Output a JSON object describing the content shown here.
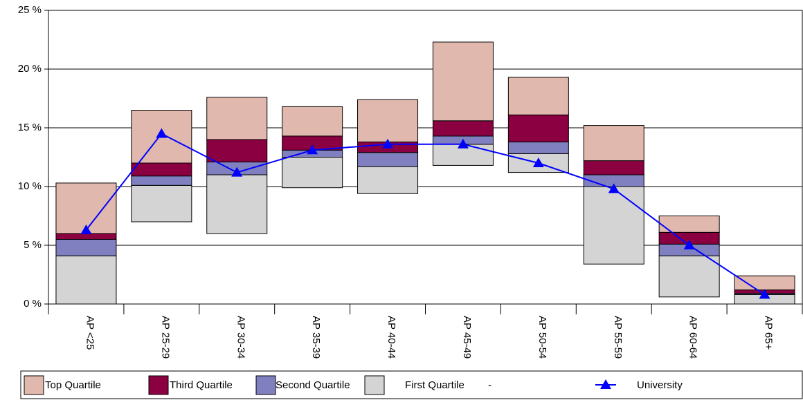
{
  "chart_data": {
    "type": "bar",
    "stacked": true,
    "categories": [
      "AP <25",
      "AP 25-29",
      "AP 30-34",
      "AP 35-39",
      "AP 40-44",
      "AP 45-49",
      "AP 50-54",
      "AP 55-59",
      "AP 60-64",
      "AP 65+"
    ],
    "series": [
      {
        "name": "-",
        "color": null,
        "values": [
          0,
          7.0,
          6.0,
          9.9,
          9.4,
          11.8,
          11.2,
          3.4,
          0.6,
          0
        ]
      },
      {
        "name": "First Quartile",
        "color": "#d4d4d4",
        "values": [
          4.1,
          3.1,
          5.0,
          2.6,
          2.3,
          1.8,
          1.6,
          6.6,
          3.5,
          0.8
        ]
      },
      {
        "name": "Second Quartile",
        "color": "#8080c0",
        "values": [
          1.4,
          0.8,
          1.1,
          0.6,
          1.2,
          0.7,
          1.0,
          1.0,
          1.0,
          0.1
        ]
      },
      {
        "name": "Third Quartile",
        "color": "#8b0040",
        "values": [
          0.5,
          1.1,
          1.9,
          1.2,
          0.9,
          1.3,
          2.3,
          1.2,
          1.0,
          0.3
        ]
      },
      {
        "name": "Top Quartile",
        "color": "#e0b8ad",
        "values": [
          4.3,
          4.5,
          3.6,
          2.5,
          3.6,
          6.7,
          3.2,
          3.0,
          1.4,
          1.2
        ]
      },
      {
        "name": "University",
        "type": "line",
        "color": "#0000ff",
        "values": [
          6.3,
          14.5,
          11.2,
          13.1,
          13.6,
          13.6,
          12.0,
          9.8,
          5.0,
          0.8
        ]
      }
    ],
    "ylim": [
      0,
      25
    ],
    "yticks": [
      {
        "value": 0,
        "label": "0 %"
      },
      {
        "value": 5,
        "label": "5 %"
      },
      {
        "value": 10,
        "label": "10 %"
      },
      {
        "value": 15,
        "label": "15 %"
      },
      {
        "value": 20,
        "label": "20 %"
      },
      {
        "value": 25,
        "label": "25 %"
      }
    ],
    "grid": true,
    "legend": "bottom"
  }
}
